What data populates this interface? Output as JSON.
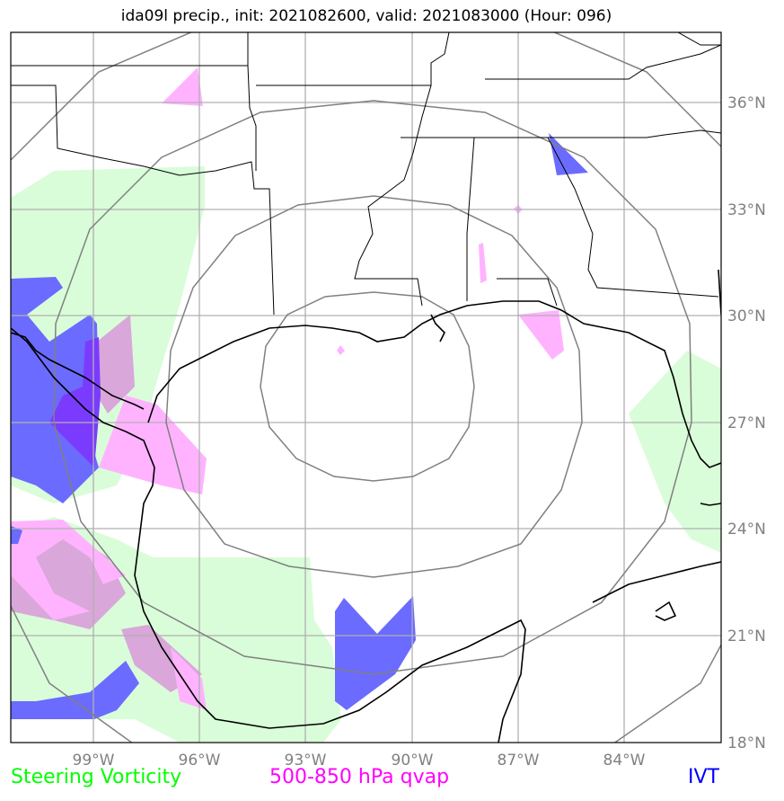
{
  "title": "ida09l precip., init: 2021082600, valid: 2021083000 (Hour: 096)",
  "legend": {
    "steering": {
      "label": "Steering Vorticity",
      "color": "#00ff00"
    },
    "qvap": {
      "label": "500-850 hPa qvap",
      "color": "#ff00ff"
    },
    "ivt": {
      "label": "IVT",
      "color": "#0000ff"
    }
  },
  "axes": {
    "lon_ticks": [
      "99°W",
      "96°W",
      "93°W",
      "90°W",
      "87°W",
      "84°W"
    ],
    "lat_ticks": [
      "36°N",
      "33°N",
      "30°N",
      "27°N",
      "24°N",
      "21°N",
      "18°N"
    ]
  },
  "colors": {
    "steering_fill": "#d9fdd9",
    "qvap_fill": "#ffb3ff",
    "ivt_fill": "#6b6bff",
    "overlap_fill": "#d9a7d9",
    "grid": "#b0b0b0",
    "range_rings": "#808080"
  }
}
